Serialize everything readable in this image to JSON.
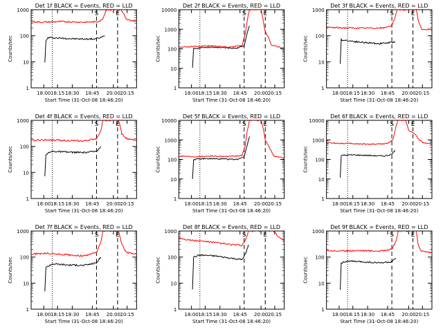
{
  "page": {
    "background": "#ffffff"
  },
  "colors": {
    "events": "#000000",
    "lld": "#ff0000",
    "axis": "#000000"
  },
  "chart_data": [
    {
      "type": "line",
      "title": "Det 1f BLACK = Events, RED = LLD",
      "xlabel": "Start Time (31-Oct-08 18:46:20)",
      "ylabel": "Counts/sec",
      "ylim": [
        1,
        1000
      ],
      "ylog": true,
      "xticks": [
        "18:00",
        "18:15",
        "18:30",
        "18:45",
        "20:00",
        "20:15"
      ],
      "markers": {
        "S": "S",
        "E": "E"
      },
      "series": [
        {
          "color": "#000000",
          "points": [
            [
              0.13,
              10
            ],
            [
              0.14,
              60
            ],
            [
              0.16,
              85
            ],
            [
              0.3,
              80
            ],
            [
              0.45,
              75
            ],
            [
              0.6,
              75
            ],
            [
              0.66,
              85
            ],
            [
              0.7,
              100
            ]
          ]
        },
        {
          "color": "#ff0000",
          "points": [
            [
              0.0,
              350
            ],
            [
              0.1,
              330
            ],
            [
              0.3,
              350
            ],
            [
              0.5,
              330
            ],
            [
              0.62,
              340
            ],
            [
              0.67,
              400
            ],
            [
              0.7,
              700
            ],
            [
              0.71,
              1000
            ],
            [
              0.85,
              1000
            ],
            [
              0.88,
              650
            ],
            [
              0.9,
              420
            ],
            [
              1.0,
              360
            ]
          ]
        }
      ]
    },
    {
      "type": "line",
      "title": "Det 2f BLACK = Events, RED = LLD",
      "xlabel": "Start Time (31-Oct-08 18:46:20)",
      "ylabel": "Counts/sec",
      "ylim": [
        1,
        10000
      ],
      "ylog": true,
      "xticks": [
        "18:00",
        "18:15",
        "18:30",
        "18:45",
        "20:00",
        "20:15"
      ],
      "markers": {
        "S": "S",
        "E": "E"
      },
      "series": [
        {
          "color": "#000000",
          "points": [
            [
              0.13,
              10
            ],
            [
              0.14,
              100
            ],
            [
              0.25,
              120
            ],
            [
              0.4,
              115
            ],
            [
              0.55,
              105
            ],
            [
              0.62,
              150
            ],
            [
              0.65,
              700
            ],
            [
              0.67,
              1500
            ]
          ]
        },
        {
          "color": "#ff0000",
          "points": [
            [
              0.0,
              120
            ],
            [
              0.15,
              130
            ],
            [
              0.3,
              140
            ],
            [
              0.5,
              120
            ],
            [
              0.6,
              150
            ],
            [
              0.63,
              600
            ],
            [
              0.65,
              3000
            ],
            [
              0.67,
              10000
            ],
            [
              0.78,
              10000
            ],
            [
              0.8,
              3000
            ],
            [
              0.82,
              700
            ],
            [
              0.85,
              400
            ],
            [
              0.88,
              150
            ],
            [
              1.0,
              110
            ]
          ]
        }
      ]
    },
    {
      "type": "line",
      "title": "Det 3f BLACK = Events, RED = LLD",
      "xlabel": "Start Time (31-Oct-08 18:46:20)",
      "ylabel": "Counts/sec",
      "ylim": [
        1,
        1000
      ],
      "ylog": true,
      "xticks": [
        "18:00",
        "18:15",
        "18:30",
        "18:45",
        "20:00",
        "20:15"
      ],
      "markers": {
        "S": "S",
        "E": "E"
      },
      "series": [
        {
          "color": "#000000",
          "points": [
            [
              0.13,
              8
            ],
            [
              0.14,
              70
            ],
            [
              0.2,
              65
            ],
            [
              0.35,
              55
            ],
            [
              0.5,
              50
            ],
            [
              0.62,
              55
            ],
            [
              0.65,
              60
            ]
          ]
        },
        {
          "color": "#ff0000",
          "points": [
            [
              0.0,
              210
            ],
            [
              0.15,
              200
            ],
            [
              0.35,
              195
            ],
            [
              0.55,
              200
            ],
            [
              0.62,
              250
            ],
            [
              0.65,
              500
            ],
            [
              0.67,
              1000
            ],
            [
              0.85,
              1000
            ],
            [
              0.87,
              400
            ],
            [
              0.9,
              180
            ],
            [
              1.0,
              170
            ]
          ]
        }
      ]
    },
    {
      "type": "line",
      "title": "Det 4f BLACK = Events, RED = LLD",
      "xlabel": "Start Time (31-Oct-08 18:46:20)",
      "ylabel": "Counts/sec",
      "ylim": [
        1,
        1000
      ],
      "ylog": true,
      "xticks": [
        "18:00",
        "18:15",
        "18:30",
        "18:45",
        "20:00",
        "20:15"
      ],
      "markers": {
        "S": "S",
        "E": "E"
      },
      "series": [
        {
          "color": "#000000",
          "points": [
            [
              0.13,
              7
            ],
            [
              0.14,
              50
            ],
            [
              0.2,
              65
            ],
            [
              0.35,
              60
            ],
            [
              0.5,
              58
            ],
            [
              0.62,
              65
            ],
            [
              0.66,
              100
            ]
          ]
        },
        {
          "color": "#ff0000",
          "points": [
            [
              0.0,
              170
            ],
            [
              0.15,
              180
            ],
            [
              0.3,
              170
            ],
            [
              0.5,
              160
            ],
            [
              0.62,
              200
            ],
            [
              0.66,
              400
            ],
            [
              0.68,
              1000
            ],
            [
              0.83,
              1000
            ],
            [
              0.86,
              300
            ],
            [
              0.9,
              200
            ],
            [
              1.0,
              170
            ]
          ]
        }
      ]
    },
    {
      "type": "line",
      "title": "Det 5f BLACK = Events, RED = LLD",
      "xlabel": "Start Time (31-Oct-08 18:46:20)",
      "ylabel": "Counts/sec",
      "ylim": [
        1,
        10000
      ],
      "ylog": true,
      "xticks": [
        "18:00",
        "18:15",
        "18:30",
        "18:45",
        "20:00",
        "20:15"
      ],
      "markers": {
        "S": "S",
        "E": "E"
      },
      "series": [
        {
          "color": "#000000",
          "points": [
            [
              0.13,
              10
            ],
            [
              0.14,
              100
            ],
            [
              0.25,
              110
            ],
            [
              0.4,
              105
            ],
            [
              0.55,
              100
            ],
            [
              0.62,
              140
            ],
            [
              0.65,
              600
            ],
            [
              0.67,
              1500
            ]
          ]
        },
        {
          "color": "#ff0000",
          "points": [
            [
              0.0,
              150
            ],
            [
              0.15,
              140
            ],
            [
              0.3,
              150
            ],
            [
              0.5,
              140
            ],
            [
              0.6,
              160
            ],
            [
              0.63,
              500
            ],
            [
              0.65,
              3000
            ],
            [
              0.67,
              10000
            ],
            [
              0.78,
              10000
            ],
            [
              0.8,
              4000
            ],
            [
              0.82,
              1000
            ],
            [
              0.86,
              400
            ],
            [
              0.9,
              150
            ],
            [
              1.0,
              120
            ]
          ]
        }
      ]
    },
    {
      "type": "line",
      "title": "Det 6f BLACK = Events, RED = LLD",
      "xlabel": "Start Time (31-Oct-08 18:46:20)",
      "ylabel": "Counts/sec",
      "ylim": [
        1,
        10000
      ],
      "ylog": true,
      "xticks": [
        "18:00",
        "18:15",
        "18:30",
        "18:45",
        "20:00",
        "20:15"
      ],
      "markers": {
        "S": "S",
        "E": "E"
      },
      "series": [
        {
          "color": "#000000",
          "points": [
            [
              0.13,
              12
            ],
            [
              0.14,
              160
            ],
            [
              0.25,
              170
            ],
            [
              0.4,
              160
            ],
            [
              0.55,
              150
            ],
            [
              0.62,
              180
            ],
            [
              0.65,
              300
            ]
          ]
        },
        {
          "color": "#ff0000",
          "points": [
            [
              0.0,
              700
            ],
            [
              0.2,
              650
            ],
            [
              0.4,
              600
            ],
            [
              0.58,
              650
            ],
            [
              0.63,
              1000
            ],
            [
              0.66,
              5000
            ],
            [
              0.68,
              10000
            ],
            [
              0.75,
              10000
            ],
            [
              0.78,
              3000
            ],
            [
              0.84,
              2000
            ],
            [
              0.88,
              1000
            ],
            [
              0.92,
              700
            ],
            [
              1.0,
              600
            ]
          ]
        }
      ]
    },
    {
      "type": "line",
      "title": "Det 7f BLACK = Events, RED = LLD",
      "xlabel": "Start Time (31-Oct-08 18:46:20)",
      "ylabel": "Counts/sec",
      "ylim": [
        1,
        1000
      ],
      "ylog": true,
      "xticks": [
        "18:00",
        "18:15",
        "18:30",
        "18:45",
        "20:00",
        "20:15"
      ],
      "markers": {
        "S": "S",
        "E": "E"
      },
      "series": [
        {
          "color": "#000000",
          "points": [
            [
              0.13,
              5
            ],
            [
              0.14,
              40
            ],
            [
              0.2,
              55
            ],
            [
              0.35,
              50
            ],
            [
              0.5,
              48
            ],
            [
              0.62,
              60
            ],
            [
              0.66,
              100
            ]
          ]
        },
        {
          "color": "#ff0000",
          "points": [
            [
              0.0,
              130
            ],
            [
              0.15,
              140
            ],
            [
              0.3,
              125
            ],
            [
              0.5,
              110
            ],
            [
              0.62,
              150
            ],
            [
              0.66,
              350
            ],
            [
              0.68,
              1000
            ],
            [
              0.83,
              1000
            ],
            [
              0.86,
              300
            ],
            [
              0.9,
              150
            ],
            [
              1.0,
              130
            ]
          ]
        }
      ]
    },
    {
      "type": "line",
      "title": "Det 8f BLACK = Events, RED = LLD",
      "xlabel": "Start Time (31-Oct-08 18:46:20)",
      "ylabel": "Counts/sec",
      "ylim": [
        1,
        1000
      ],
      "ylog": true,
      "xticks": [
        "18:00",
        "18:15",
        "18:30",
        "18:45",
        "20:00",
        "20:15"
      ],
      "markers": {
        "S": "S",
        "E": "E"
      },
      "series": [
        {
          "color": "#000000",
          "points": [
            [
              0.13,
              6
            ],
            [
              0.14,
              100
            ],
            [
              0.2,
              120
            ],
            [
              0.35,
              110
            ],
            [
              0.5,
              90
            ],
            [
              0.6,
              80
            ],
            [
              0.64,
              150
            ],
            [
              0.66,
              300
            ]
          ]
        },
        {
          "color": "#ff0000",
          "points": [
            [
              0.0,
              550
            ],
            [
              0.1,
              450
            ],
            [
              0.3,
              380
            ],
            [
              0.5,
              300
            ],
            [
              0.6,
              280
            ],
            [
              0.64,
              500
            ],
            [
              0.66,
              1000
            ],
            [
              0.9,
              1000
            ],
            [
              0.93,
              700
            ],
            [
              1.0,
              400
            ]
          ]
        }
      ]
    },
    {
      "type": "line",
      "title": "Det 9f BLACK = Events, RED = LLD",
      "xlabel": "Start Time (31-Oct-08 18:46:20)",
      "ylabel": "Counts/sec",
      "ylim": [
        1,
        1000
      ],
      "ylog": true,
      "xticks": [
        "18:00",
        "18:15",
        "18:30",
        "18:45",
        "20:00",
        "20:15"
      ],
      "markers": {
        "S": "S",
        "E": "E"
      },
      "series": [
        {
          "color": "#000000",
          "points": [
            [
              0.13,
              6
            ],
            [
              0.14,
              60
            ],
            [
              0.2,
              70
            ],
            [
              0.35,
              65
            ],
            [
              0.5,
              60
            ],
            [
              0.62,
              65
            ],
            [
              0.66,
              90
            ]
          ]
        },
        {
          "color": "#ff0000",
          "points": [
            [
              0.0,
              180
            ],
            [
              0.15,
              170
            ],
            [
              0.3,
              180
            ],
            [
              0.5,
              170
            ],
            [
              0.62,
              200
            ],
            [
              0.66,
              400
            ],
            [
              0.68,
              1000
            ],
            [
              0.85,
              1000
            ],
            [
              0.87,
              300
            ],
            [
              0.9,
              170
            ],
            [
              1.0,
              150
            ]
          ]
        }
      ]
    }
  ]
}
